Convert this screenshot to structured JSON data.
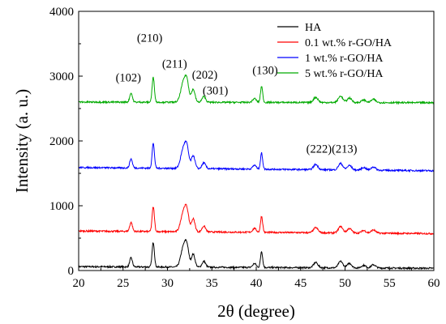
{
  "chart_data": {
    "type": "line",
    "xlabel": "2θ (degree)",
    "ylabel": "Intensity (a. u.)",
    "xlim": [
      20,
      60
    ],
    "ylim": [
      0,
      4000
    ],
    "xticks": [
      20,
      25,
      30,
      35,
      40,
      45,
      50,
      55,
      60
    ],
    "yticks": [
      0,
      1000,
      2000,
      3000,
      4000
    ],
    "grid": false,
    "legend_position": "top-right",
    "series": [
      {
        "name": "HA",
        "color": "#000000",
        "baseline": 60,
        "noise": 12,
        "slope": -25
      },
      {
        "name": "0.1 wt.% r-GO/HA",
        "color": "#ff0000",
        "baseline": 610,
        "noise": 12,
        "slope": -40
      },
      {
        "name": "1 wt.% r-GO/HA",
        "color": "#0000ff",
        "baseline": 1590,
        "noise": 12,
        "slope": -50
      },
      {
        "name": "5 wt.% r-GO/HA",
        "color": "#00aa00",
        "baseline": 2600,
        "noise": 12,
        "slope": -10
      }
    ],
    "peaks": [
      {
        "x": 25.9,
        "height": 140,
        "width": 0.15
      },
      {
        "x": 28.4,
        "height": 380,
        "width": 0.13
      },
      {
        "x": 31.8,
        "height": 300,
        "width": 0.3
      },
      {
        "x": 32.2,
        "height": 260,
        "width": 0.22
      },
      {
        "x": 32.9,
        "height": 200,
        "width": 0.2
      },
      {
        "x": 34.1,
        "height": 90,
        "width": 0.2
      },
      {
        "x": 39.8,
        "height": 60,
        "width": 0.2
      },
      {
        "x": 40.6,
        "height": 250,
        "width": 0.12
      },
      {
        "x": 46.7,
        "height": 80,
        "width": 0.25
      },
      {
        "x": 49.5,
        "height": 100,
        "width": 0.25
      },
      {
        "x": 50.5,
        "height": 70,
        "width": 0.25
      },
      {
        "x": 52.1,
        "height": 40,
        "width": 0.25
      },
      {
        "x": 53.2,
        "height": 50,
        "width": 0.25
      }
    ],
    "annotations": [
      {
        "text": "(102)",
        "x": 25.6,
        "y": 2920
      },
      {
        "text": "(210)",
        "x": 28.0,
        "y": 3530
      },
      {
        "text": "(211)",
        "x": 30.8,
        "y": 3130
      },
      {
        "text": "(202)",
        "x": 34.2,
        "y": 2960
      },
      {
        "text": "(301)",
        "x": 35.4,
        "y": 2720
      },
      {
        "text": "(130)",
        "x": 41.0,
        "y": 3030
      },
      {
        "text": "(222)(213)",
        "x": 48.5,
        "y": 1820
      }
    ]
  }
}
